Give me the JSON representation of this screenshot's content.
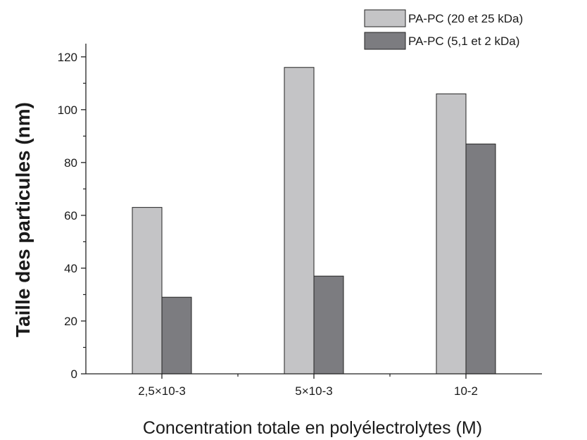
{
  "chart_data": {
    "type": "bar",
    "categories": [
      "2,5×10-3",
      "5×10-3",
      "10-2"
    ],
    "series": [
      {
        "name": "PA-PC (20 et 25 kDa)",
        "values": [
          63,
          116,
          106
        ],
        "color": "#c4c4c6"
      },
      {
        "name": "PA-PC (5,1 et 2 kDa)",
        "values": [
          29,
          37,
          87
        ],
        "color": "#7c7c80"
      }
    ],
    "xlabel": "Concentration totale en polyélectrolytes (M)",
    "ylabel": "Taille des particules (nm)",
    "ylim": [
      0,
      125
    ],
    "yticks": [
      0,
      20,
      40,
      60,
      80,
      100,
      120
    ],
    "grid": false,
    "legend_position": "top-right"
  }
}
